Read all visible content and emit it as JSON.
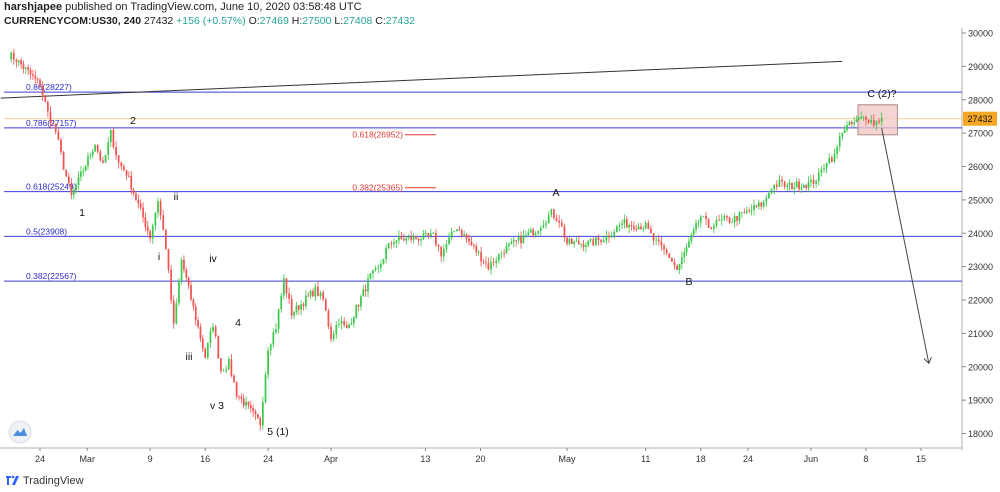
{
  "header": {
    "author": "harshjapee",
    "published_text": "published on TradingView.com, June 10, 2020 03:58:48 UTC",
    "symbol": "CURRENCYCOM:US30, 240",
    "last": "27432",
    "change": "+156 (+0.57%)",
    "open_label": "O:",
    "open": "27469",
    "high_label": "H:",
    "high": "27500",
    "low_label": "L:",
    "low": "27408",
    "close_label": "C:",
    "close": "27432"
  },
  "footer": {
    "brand": "TradingView"
  },
  "colors": {
    "up": "#26a69a",
    "up_bright": "#3bc94a",
    "down": "#ef5350",
    "fib_line": "#3f3fd8",
    "fib_label": "#2b2bc8",
    "fib_red": "#e53935",
    "box_fill": "#f2c7c4",
    "box_stroke": "#b08a88",
    "price_tag": "#f5a623"
  },
  "chart_data": {
    "type": "candlestick",
    "y_axis": {
      "min": 17600,
      "max": 30100,
      "ticks": [
        18000,
        19000,
        20000,
        21000,
        22000,
        23000,
        24000,
        25000,
        26000,
        27000,
        28000,
        29000,
        30000
      ]
    },
    "x_ticks": [
      "24",
      "Mar",
      "9",
      "16",
      "24",
      "Apr",
      "13",
      "20",
      "May",
      "11",
      "18",
      "24",
      "Jun",
      "8",
      "15"
    ],
    "last_price_tag": "27432",
    "fib_levels": [
      {
        "label": "0.86(28227)",
        "value": 28227
      },
      {
        "label": "0.786(27157)",
        "value": 27157
      },
      {
        "label": "0.618(25249)",
        "value": 25249
      },
      {
        "label": "0.5(23908)",
        "value": 23908
      },
      {
        "label": "0.382(22567)",
        "value": 22567
      }
    ],
    "red_fib_levels": [
      {
        "label": "0.618(26952)",
        "value": 26952
      },
      {
        "label": "0.382(25365)",
        "value": 25365
      }
    ],
    "wave_labels": [
      "1",
      "2",
      "i",
      "ii",
      "iii",
      "iv",
      "v 3",
      "4",
      "5 (1)",
      "A",
      "B",
      "C (2)?"
    ],
    "price_path": [
      [
        "Feb 20",
        29350
      ],
      [
        "Feb 21",
        29200
      ],
      [
        "Feb 24",
        28450
      ],
      [
        "Feb 25",
        27600
      ],
      [
        "Feb 26",
        27050
      ],
      [
        "Feb 27",
        26000
      ],
      [
        "Feb 28",
        25100
      ],
      [
        "Mar 2",
        26700
      ],
      [
        "Mar 3",
        26000
      ],
      [
        "Mar 4",
        27000
      ],
      [
        "Mar 5",
        26100
      ],
      [
        "Mar 6",
        25800
      ],
      [
        "Mar 9",
        23900
      ],
      [
        "Mar 10",
        25000
      ],
      [
        "Mar 11",
        23600
      ],
      [
        "Mar 12",
        21200
      ],
      [
        "Mar 13",
        23200
      ],
      [
        "Mar 16",
        20300
      ],
      [
        "Mar 17",
        21300
      ],
      [
        "Mar 18",
        19900
      ],
      [
        "Mar 19",
        20100
      ],
      [
        "Mar 20",
        19200
      ],
      [
        "Mar 23",
        18300
      ],
      [
        "Mar 24",
        20600
      ],
      [
        "Mar 25",
        21200
      ],
      [
        "Mar 26",
        22600
      ],
      [
        "Mar 27",
        21600
      ],
      [
        "Mar 30",
        22300
      ],
      [
        "Mar 31",
        22000
      ],
      [
        "Apr 1",
        20900
      ],
      [
        "Apr 2",
        21400
      ],
      [
        "Apr 3",
        21100
      ],
      [
        "Apr 6",
        22700
      ],
      [
        "Apr 7",
        22900
      ],
      [
        "Apr 8",
        23500
      ],
      [
        "Apr 9",
        23800
      ],
      [
        "Apr 14",
        23900
      ],
      [
        "Apr 15",
        23400
      ],
      [
        "Apr 17",
        24200
      ],
      [
        "Apr 21",
        23000
      ],
      [
        "Apr 23",
        23500
      ],
      [
        "Apr 27",
        24100
      ],
      [
        "Apr 29",
        24600
      ],
      [
        "Apr 30",
        24400
      ],
      [
        "May 1",
        23700
      ],
      [
        "May 4",
        23700
      ],
      [
        "May 6",
        23900
      ],
      [
        "May 8",
        24300
      ],
      [
        "May 11",
        24200
      ],
      [
        "May 12",
        23800
      ],
      [
        "May 14",
        23300
      ],
      [
        "May 15",
        22900
      ],
      [
        "May 18",
        24500
      ],
      [
        "May 19",
        24200
      ],
      [
        "May 21",
        24400
      ],
      [
        "May 22",
        24400
      ],
      [
        "May 26",
        24900
      ],
      [
        "May 27",
        25400
      ],
      [
        "May 28",
        25500
      ],
      [
        "May 29",
        25400
      ],
      [
        "Jun 1",
        25500
      ],
      [
        "Jun 2",
        25700
      ],
      [
        "Jun 3",
        26200
      ],
      [
        "Jun 4",
        26300
      ],
      [
        "Jun 5",
        27100
      ],
      [
        "Jun 8",
        27500
      ],
      [
        "Jun 9",
        27300
      ],
      [
        "Jun 10",
        27450
      ]
    ],
    "trendline": {
      "from": [
        "Feb 19",
        28050
      ],
      "to": [
        "Jun 5",
        29150
      ]
    },
    "resistance_box": {
      "from": "Jun 7",
      "to": "Jun 12",
      "low": 26950,
      "high": 27850
    },
    "projection_arrow": {
      "from": [
        "Jun 10",
        27150
      ],
      "to": [
        "Jun 16",
        20100
      ]
    }
  }
}
